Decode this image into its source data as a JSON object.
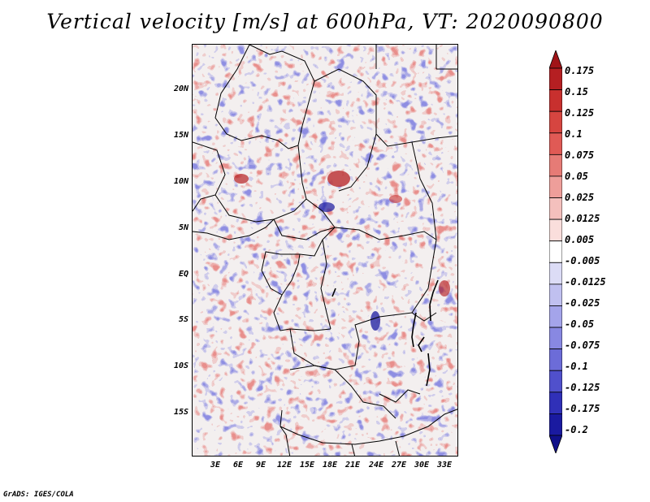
{
  "title": "Vertical velocity [m/s] at 600hPa, VT: 2020090800",
  "credit": "GrADS: IGES/COLA",
  "lat_ticks": [
    "20N",
    "15N",
    "10N",
    "5N",
    "EQ",
    "5S",
    "10S",
    "15S"
  ],
  "lon_ticks": [
    "3E",
    "6E",
    "9E",
    "12E",
    "15E",
    "18E",
    "21E",
    "24E",
    "27E",
    "30E",
    "33E"
  ],
  "colorbar": {
    "labels": [
      "0.175",
      "0.15",
      "0.125",
      "0.1",
      "0.075",
      "0.05",
      "0.025",
      "0.0125",
      "0.005",
      "-0.005",
      "-0.0125",
      "-0.025",
      "-0.05",
      "-0.075",
      "-0.1",
      "-0.125",
      "-0.175",
      "-0.2"
    ],
    "colors": [
      "#a01418",
      "#b51f22",
      "#c8302e",
      "#d64540",
      "#e05a55",
      "#e67b76",
      "#ee9e9a",
      "#f4c0bd",
      "#fadedc",
      "#ffffff",
      "#dcdcf6",
      "#c0c0f0",
      "#a4a4ea",
      "#8888e2",
      "#6c6cd8",
      "#5050cc",
      "#3030b8",
      "#1a1aa0",
      "#10108a"
    ]
  }
}
